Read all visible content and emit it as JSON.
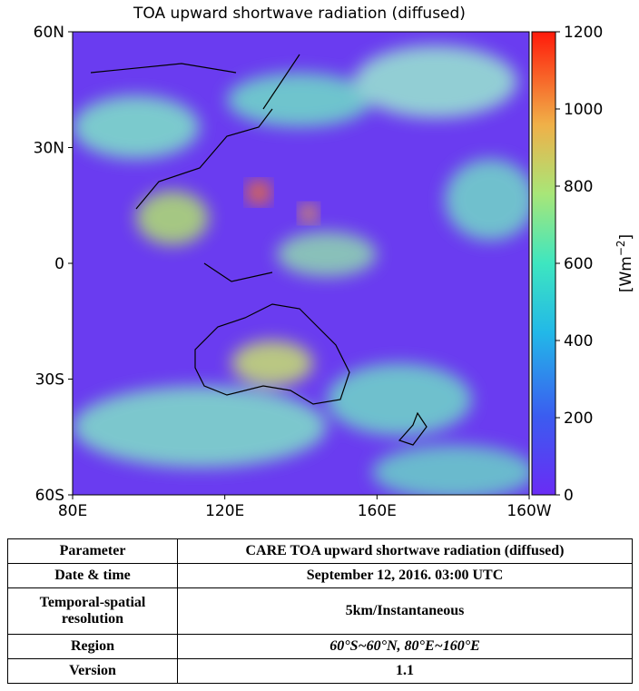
{
  "map": {
    "title": "TOA upward shortwave radiation (diffused)",
    "lat_lim": [
      -60,
      60
    ],
    "lat_ticks": [
      {
        "value": 60,
        "label": "60N"
      },
      {
        "value": 30,
        "label": "30N"
      },
      {
        "value": 0,
        "label": "0"
      },
      {
        "value": -30,
        "label": "30S"
      },
      {
        "value": -60,
        "label": "60S"
      }
    ],
    "lon_lim": [
      80,
      200
    ],
    "lon_ticks": [
      {
        "value": 80,
        "label": "80E"
      },
      {
        "value": 120,
        "label": "120E"
      },
      {
        "value": 160,
        "label": "160E"
      },
      {
        "value": 200,
        "label": "160W"
      }
    ]
  },
  "colorbar": {
    "label": [
      "[Wm",
      "−2",
      "]"
    ],
    "lim": [
      0,
      1200
    ],
    "ticks": [
      0,
      200,
      400,
      600,
      800,
      1000,
      1200
    ]
  },
  "table": {
    "rows": [
      [
        "Parameter",
        "CARE TOA upward shortwave radiation (diffused)"
      ],
      [
        "Date & time",
        "September 12, 2016. 03:00 UTC"
      ],
      [
        "Temporal-spatial resolution",
        "5km/Instantaneous"
      ],
      [
        "Region",
        "60°S~60°N, 80°E~160°E"
      ],
      [
        "Version",
        "1.1"
      ]
    ]
  }
}
